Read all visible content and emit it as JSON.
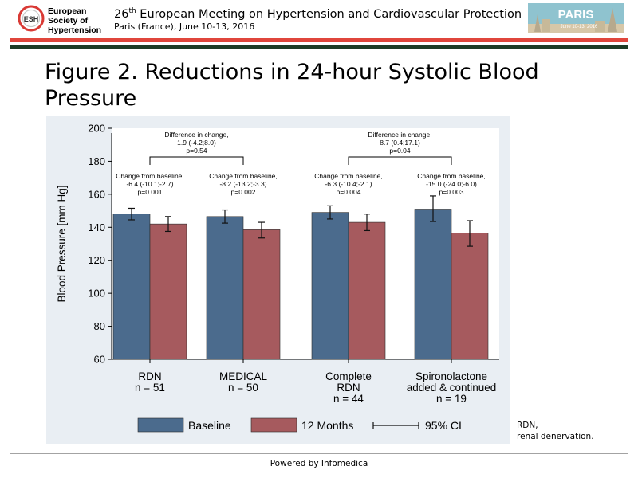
{
  "header": {
    "logo_abbr": "ESH",
    "logo_lines": [
      "European",
      "Society of",
      "Hypertension"
    ],
    "meeting_number": "26",
    "meeting_suffix": "th",
    "meeting_title": " European Meeting on Hypertension and Cardiovascular Protection",
    "meeting_subtitle": "Paris (France), June 10-13, 2016",
    "badge_title": "PARIS",
    "badge_dates": "June 10-13, 2016"
  },
  "colors": {
    "baseline": "#4b6b8d",
    "months12": "#a65a5e",
    "plot_bg": "#ffffff",
    "panel_bg": "#e9eef3",
    "header_red": "#e0463c",
    "header_green": "#1d3b26"
  },
  "figure_title": "Figure 2. Reductions in 24-hour Systolic Blood Pressure",
  "chart_data": {
    "type": "bar",
    "ylabel": "Blood Pressure [mm Hg]",
    "ylim": [
      60,
      200
    ],
    "yticks": [
      60,
      80,
      100,
      120,
      140,
      160,
      180,
      200
    ],
    "grid": false,
    "legend_position": "bottom",
    "categories": [
      {
        "lines": [
          "RDN",
          "n = 51"
        ]
      },
      {
        "lines": [
          "MEDICAL",
          "n = 50"
        ]
      },
      {
        "lines": [
          "Complete",
          "RDN",
          "n = 44"
        ]
      },
      {
        "lines": [
          "Spironolactone",
          "added & continued",
          "n = 19"
        ]
      }
    ],
    "series": [
      {
        "name": "Baseline",
        "values": [
          148,
          146.5,
          149,
          151
        ],
        "ci_low": [
          144.5,
          142.5,
          145,
          143.5
        ],
        "ci_high": [
          151.5,
          150.5,
          153,
          159
        ]
      },
      {
        "name": "12 Months",
        "values": [
          142,
          138.5,
          143,
          136.5
        ],
        "ci_low": [
          137.5,
          133.5,
          138,
          128.5
        ],
        "ci_high": [
          146.5,
          143,
          148,
          144
        ]
      }
    ],
    "annotations": [
      {
        "lines": [
          "Change from baseline,",
          "-6.4 (-10.1;-2.7)",
          "p=0.001"
        ],
        "group": 0
      },
      {
        "lines": [
          "Change from baseline,",
          "-8.2 (-13.2;-3.3)",
          "p=0.002"
        ],
        "group": 1
      },
      {
        "lines": [
          "Change from baseline,",
          "-6.3 (-10.4;-2.1)",
          "p=0.004"
        ],
        "group": 2
      },
      {
        "lines": [
          "Change from baseline,",
          "-15.0 (-24.0;-6.0)",
          "p=0.003"
        ],
        "group": 3
      }
    ],
    "comparisons": [
      {
        "lines": [
          "Difference in change,",
          "1.9 (-4.2;8.0)",
          "p=0.54"
        ],
        "groups": [
          0,
          1
        ]
      },
      {
        "lines": [
          "Difference in change,",
          "8.7 (0.4;17.1)",
          "p=0.04"
        ],
        "groups": [
          2,
          3
        ]
      }
    ],
    "legend": {
      "baseline": "Baseline",
      "months12": "12 Months",
      "ci": "95% CI"
    }
  },
  "note": "RDN,\nrenal denervation.",
  "footer": "Powered by Infomedica"
}
